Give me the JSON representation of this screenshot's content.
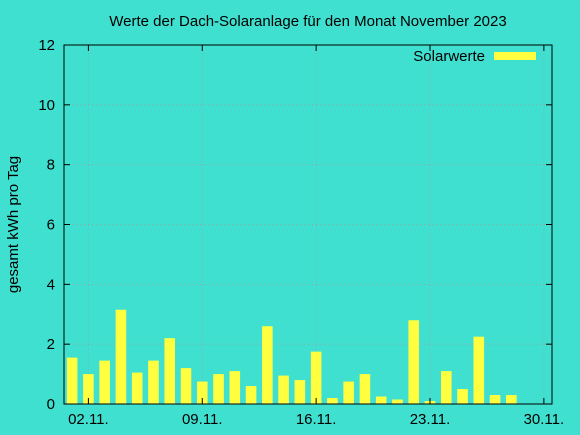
{
  "chart_data": {
    "type": "bar",
    "title": "Werte der Dach-Solaranlage für den Monat November 2023",
    "xlabel": "",
    "ylabel": "gesamt kWh pro Tag",
    "ylim": [
      0,
      12
    ],
    "yticks": [
      0,
      2,
      4,
      6,
      8,
      10,
      12
    ],
    "xlim": [
      1,
      30
    ],
    "x_tick_labels": [
      {
        "day": 2,
        "label": "02.11."
      },
      {
        "day": 9,
        "label": "09.11."
      },
      {
        "day": 16,
        "label": "16.11."
      },
      {
        "day": 23,
        "label": "23.11."
      },
      {
        "day": 30,
        "label": "30.11."
      }
    ],
    "grid": true,
    "legend_position": "top-right",
    "series": [
      {
        "name": "Solarwerte",
        "color": "#ffff40",
        "days": [
          1,
          2,
          3,
          4,
          5,
          6,
          7,
          8,
          9,
          10,
          11,
          12,
          13,
          14,
          15,
          16,
          17,
          18,
          19,
          20,
          21,
          22,
          23,
          24,
          25,
          26,
          27,
          28,
          29,
          30
        ],
        "values": [
          1.55,
          1.0,
          1.45,
          3.15,
          1.05,
          1.45,
          2.2,
          1.2,
          0.75,
          1.0,
          1.1,
          0.6,
          2.6,
          0.95,
          0.8,
          1.75,
          0.2,
          0.75,
          1.0,
          0.25,
          0.15,
          2.8,
          0.1,
          1.1,
          0.5,
          2.25,
          0.3,
          0.3,
          0.0,
          0.0
        ]
      }
    ]
  }
}
